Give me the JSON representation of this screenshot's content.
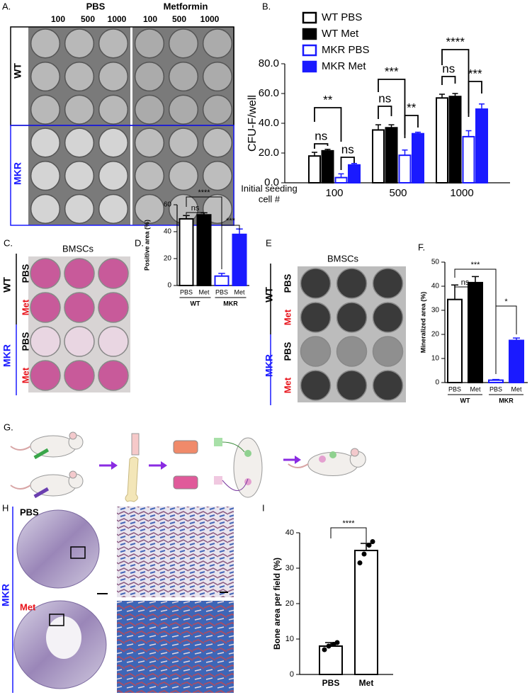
{
  "figure": {
    "panel_labels": [
      "A.",
      "B.",
      "C.",
      "D.",
      "E",
      "F.",
      "G.",
      "H",
      "I"
    ],
    "a": {
      "treatments": [
        "PBS",
        "Metformin"
      ],
      "doses": [
        "100",
        "500",
        "1000",
        "100",
        "500",
        "1000"
      ],
      "genotypes": [
        "WT",
        "MKR"
      ]
    },
    "c": {
      "title": "BMSCs",
      "genotypes": [
        "WT",
        "MKR"
      ],
      "treatments": [
        "PBS",
        "Met",
        "PBS",
        "Met"
      ]
    },
    "e": {
      "title": "BMSCs",
      "genotypes": [
        "WT",
        "MKR"
      ],
      "treatments": [
        "PBS",
        "Met",
        "PBS",
        "Met"
      ]
    },
    "h": {
      "genotype": "MKR",
      "treatments": [
        "PBS",
        "Met"
      ]
    }
  },
  "chart_data": [
    {
      "type": "grouped_bar",
      "y_label": "CFU-F/well",
      "x_label": [
        "Initial seeding",
        "cell #"
      ],
      "categories": [
        "100",
        "500",
        "1000"
      ],
      "series": [
        {
          "name": "WT PBS",
          "color": "#000000",
          "filled": false,
          "values": [
            18,
            35.5,
            57
          ],
          "errors": [
            2.5,
            3.5,
            2.5
          ]
        },
        {
          "name": "WT Met",
          "color": "#000000",
          "filled": true,
          "values": [
            21.5,
            37,
            58
          ],
          "errors": [
            1,
            2,
            2
          ]
        },
        {
          "name": "MKR PBS",
          "color": "#1a1aff",
          "filled": false,
          "values": [
            3.5,
            18.5,
            31
          ],
          "errors": [
            2.5,
            3.5,
            4
          ]
        },
        {
          "name": "MKR Met",
          "color": "#1a1aff",
          "filled": true,
          "values": [
            12,
            33,
            49.5
          ],
          "errors": [
            1,
            1,
            3.5
          ]
        }
      ],
      "ylim": [
        0,
        80
      ],
      "yticks": [
        {
          "value": 0,
          "label": "0.0"
        },
        {
          "value": 20,
          "label": "20.0"
        },
        {
          "value": 40,
          "label": "40.0"
        },
        {
          "value": 60,
          "label": "60.0"
        },
        {
          "value": 80,
          "label": "80.0"
        }
      ],
      "legend": "top-left",
      "annotations": [
        "**",
        "ns",
        "ns",
        "***",
        "ns",
        "**",
        "****",
        "ns",
        "***"
      ]
    },
    {
      "type": "bar",
      "y_label": "Positive area (%)",
      "categories": [
        "PBS",
        "Met",
        "PBS",
        "Met"
      ],
      "groups": [
        "WT",
        "MKR"
      ],
      "values": [
        49.5,
        52.5,
        7,
        38
      ],
      "errors": [
        2.5,
        1.5,
        2,
        4
      ],
      "colors": [
        "#000000",
        "#000000",
        "#1a1aff",
        "#1a1aff"
      ],
      "filled": [
        false,
        true,
        false,
        true
      ],
      "ylim": [
        0,
        60
      ],
      "yticks": [
        0,
        20,
        40,
        60
      ],
      "annotations": [
        "****",
        "ns",
        "***"
      ]
    },
    {
      "type": "bar",
      "y_label": "Mineralized area (%)",
      "categories": [
        "PBS",
        "Met",
        "PBS",
        "Met"
      ],
      "groups": [
        "WT",
        "MKR"
      ],
      "values": [
        34.5,
        41.5,
        1,
        17.5
      ],
      "errors": [
        6,
        2.5,
        0.3,
        1
      ],
      "colors": [
        "#000000",
        "#000000",
        "#1a1aff",
        "#1a1aff"
      ],
      "filled": [
        false,
        true,
        false,
        true
      ],
      "ylim": [
        0,
        50
      ],
      "yticks": [
        0,
        10,
        20,
        30,
        40,
        50
      ],
      "annotations": [
        "***",
        "ns",
        "*"
      ]
    },
    {
      "type": "bar",
      "y_label": "Bone area per field (%)",
      "categories": [
        "PBS",
        "Met"
      ],
      "values": [
        8,
        35
      ],
      "errors": [
        1,
        2
      ],
      "colors": [
        "#000000",
        "#000000"
      ],
      "filled": [
        false,
        false
      ],
      "points": [
        [
          7,
          8,
          8.5,
          9
        ],
        [
          31.5,
          34,
          36.5,
          37.5
        ]
      ],
      "ylim": [
        0,
        40
      ],
      "yticks": [
        0,
        10,
        20,
        30,
        40
      ],
      "annotations": [
        "****"
      ]
    }
  ]
}
